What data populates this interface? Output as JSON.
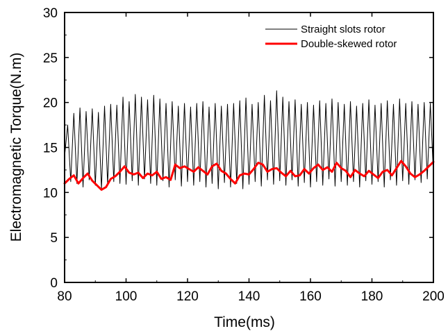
{
  "chart_data": {
    "type": "line",
    "title": "",
    "xlabel": "Time(ms)",
    "ylabel": "Electromagnetic Torque(N.m)",
    "xlim": [
      80,
      200
    ],
    "ylim": [
      0,
      30
    ],
    "xticks": [
      80,
      100,
      120,
      140,
      160,
      180,
      200
    ],
    "yticks": [
      0,
      5,
      10,
      15,
      20,
      25,
      30
    ],
    "grid": false,
    "legend_position": "top-right",
    "series": [
      {
        "name": "Straight slots rotor",
        "color": "#000000",
        "style": "thin oscillating line",
        "x": [
          80.0,
          81.0,
          82.0,
          83.0,
          84.0,
          85.0,
          86.0,
          87.0,
          88.0,
          89.0,
          90.0,
          91.0,
          92.0,
          93.0,
          94.0,
          95.0,
          96.0,
          97.0,
          98.0,
          99.0,
          100.0,
          101.0,
          102.0,
          103.0,
          104.0,
          105.0,
          106.0,
          107.0,
          108.0,
          109.0,
          110.0,
          111.0,
          112.0,
          113.0,
          114.0,
          115.0,
          116.0,
          117.0,
          118.0,
          119.0,
          120.0,
          121.0,
          122.0,
          123.0,
          124.0,
          125.0,
          126.0,
          127.0,
          128.0,
          129.0,
          130.0,
          131.0,
          132.0,
          133.0,
          134.0,
          135.0,
          136.0,
          137.0,
          138.0,
          139.0,
          140.0,
          141.0,
          142.0,
          143.0,
          144.0,
          145.0,
          146.0,
          147.0,
          148.0,
          149.0,
          150.0,
          151.0,
          152.0,
          153.0,
          154.0,
          155.0,
          156.0,
          157.0,
          158.0,
          159.0,
          160.0,
          161.0,
          162.0,
          163.0,
          164.0,
          165.0,
          166.0,
          167.0,
          168.0,
          169.0,
          170.0,
          171.0,
          172.0,
          173.0,
          174.0,
          175.0,
          176.0,
          177.0,
          178.0,
          179.0,
          180.0,
          181.0,
          182.0,
          183.0,
          184.0,
          185.0,
          186.0,
          187.0,
          188.0,
          189.0,
          190.0,
          191.0,
          192.0,
          193.0,
          194.0,
          195.0,
          196.0,
          197.0,
          198.0,
          199.0,
          200.0
        ],
        "y": [
          14.0,
          17.5,
          11.2,
          18.8,
          11.0,
          19.4,
          10.6,
          19.0,
          11.4,
          19.3,
          10.8,
          18.9,
          10.4,
          19.6,
          10.9,
          19.8,
          11.2,
          19.7,
          11.0,
          20.6,
          10.9,
          20.1,
          11.3,
          20.9,
          10.8,
          20.6,
          11.5,
          20.3,
          11.0,
          20.8,
          10.8,
          20.4,
          11.3,
          19.9,
          10.6,
          20.1,
          11.4,
          19.6,
          10.7,
          19.9,
          11.2,
          19.5,
          10.8,
          19.9,
          11.2,
          20.1,
          10.6,
          19.5,
          11.0,
          19.9,
          10.4,
          19.6,
          11.1,
          19.8,
          10.6,
          19.9,
          11.0,
          20.2,
          10.4,
          20.5,
          10.9,
          19.8,
          11.2,
          20.0,
          10.7,
          20.8,
          11.4,
          20.2,
          10.9,
          21.3,
          11.3,
          20.6,
          10.8,
          20.1,
          11.4,
          20.3,
          10.7,
          19.8,
          11.1,
          20.0,
          10.6,
          19.7,
          11.2,
          20.2,
          10.8,
          19.9,
          11.5,
          20.4,
          10.7,
          20.0,
          11.2,
          19.8,
          10.8,
          20.1,
          11.2,
          19.6,
          10.6,
          19.9,
          11.3,
          20.3,
          10.9,
          19.7,
          11.2,
          19.9,
          10.6,
          20.2,
          11.4,
          19.8,
          10.8,
          20.4,
          11.3,
          19.9,
          10.9,
          20.1,
          11.4,
          19.8,
          11.1,
          20.0,
          11.5,
          19.9,
          12.0
        ]
      },
      {
        "name": "Double-skewed rotor",
        "color": "#ff0000",
        "style": "thick line",
        "x": [
          80.0,
          81.5,
          83.0,
          84.5,
          86.0,
          87.5,
          89.0,
          90.5,
          92.0,
          93.5,
          95.0,
          96.5,
          98.0,
          99.5,
          101.0,
          102.5,
          104.0,
          105.5,
          107.0,
          108.5,
          110.0,
          111.5,
          113.0,
          114.5,
          116.0,
          117.5,
          119.0,
          120.5,
          122.0,
          123.5,
          125.0,
          126.5,
          128.0,
          129.5,
          131.0,
          132.5,
          134.0,
          135.5,
          137.0,
          138.5,
          140.0,
          141.5,
          143.0,
          144.5,
          146.0,
          147.5,
          149.0,
          150.5,
          152.0,
          153.5,
          155.0,
          156.5,
          158.0,
          159.5,
          161.0,
          162.5,
          164.0,
          165.5,
          167.0,
          168.5,
          170.0,
          171.5,
          173.0,
          174.5,
          176.0,
          177.5,
          179.0,
          180.5,
          182.0,
          183.5,
          185.0,
          186.5,
          188.0,
          189.5,
          191.0,
          192.5,
          194.0,
          195.5,
          197.0,
          198.5,
          200.0
        ],
        "y": [
          11.0,
          11.5,
          11.9,
          11.0,
          11.6,
          12.1,
          11.3,
          10.8,
          10.3,
          10.6,
          11.5,
          11.8,
          12.3,
          12.9,
          12.2,
          12.0,
          12.2,
          11.6,
          12.1,
          11.9,
          12.3,
          11.5,
          11.7,
          11.4,
          13.1,
          12.7,
          12.9,
          12.6,
          12.3,
          12.8,
          12.4,
          12.0,
          12.9,
          13.2,
          12.4,
          12.1,
          11.5,
          11.0,
          11.9,
          12.1,
          12.0,
          12.6,
          13.3,
          13.1,
          12.3,
          12.6,
          12.7,
          12.2,
          11.8,
          12.4,
          11.8,
          11.9,
          12.6,
          12.1,
          12.7,
          13.1,
          12.5,
          12.8,
          12.3,
          13.3,
          12.7,
          12.4,
          11.7,
          12.5,
          12.1,
          11.8,
          12.4,
          12.0,
          11.6,
          12.3,
          12.5,
          11.9,
          12.7,
          13.5,
          12.9,
          12.1,
          11.7,
          12.0,
          12.4,
          12.9,
          13.4
        ]
      }
    ]
  }
}
